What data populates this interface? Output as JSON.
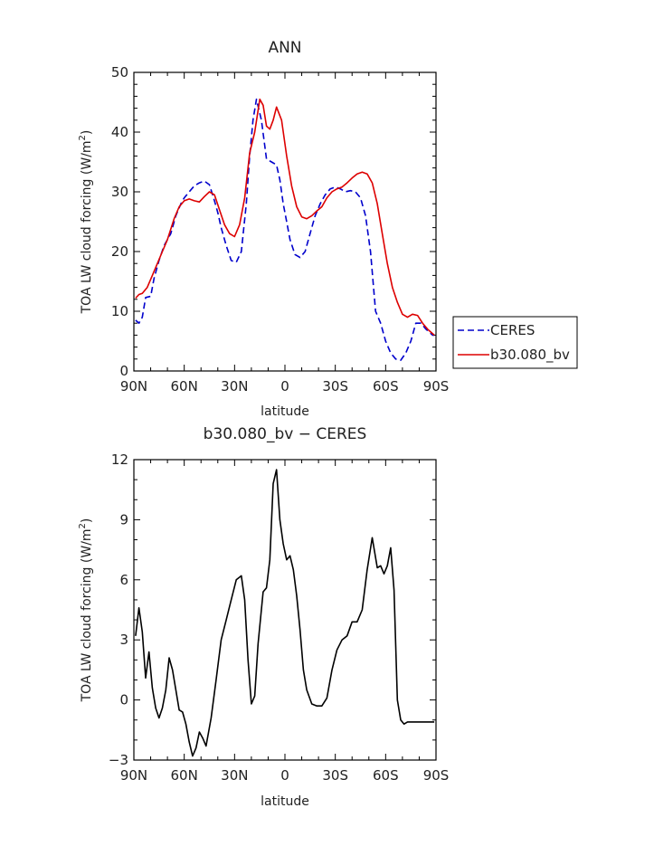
{
  "chart_data": [
    {
      "type": "line",
      "title": "ANN",
      "xlabel": "latitude",
      "ylabel": "TOA LW cloud forcing (W/m",
      "ylabel_sup": "2",
      "ylabel_close": ")",
      "xlim": [
        90,
        -90
      ],
      "ylim": [
        0,
        50
      ],
      "x_ticks": [
        {
          "value": 90,
          "label": "90N"
        },
        {
          "value": 60,
          "label": "60N"
        },
        {
          "value": 30,
          "label": "30N"
        },
        {
          "value": 0,
          "label": "0"
        },
        {
          "value": -30,
          "label": "30S"
        },
        {
          "value": -60,
          "label": "60S"
        },
        {
          "value": -90,
          "label": "90S"
        }
      ],
      "y_ticks": [
        {
          "value": 0,
          "label": "0"
        },
        {
          "value": 10,
          "label": "10"
        },
        {
          "value": 20,
          "label": "20"
        },
        {
          "value": 30,
          "label": "30"
        },
        {
          "value": 40,
          "label": "40"
        },
        {
          "value": 50,
          "label": "50"
        }
      ],
      "legend": "outside-right",
      "series": [
        {
          "name": "CERES",
          "color": "#0000cc",
          "dash": "dashed",
          "x": [
            89,
            87,
            85,
            83,
            80,
            78,
            75,
            72,
            68,
            65,
            62,
            60,
            57,
            54,
            51,
            48,
            45,
            42,
            40,
            38,
            35,
            32,
            29,
            26,
            23,
            21,
            19,
            17,
            14,
            11,
            8,
            5,
            3,
            1,
            -1,
            -3,
            -6,
            -9,
            -12,
            -15,
            -18,
            -21,
            -24,
            -27,
            -30,
            -33,
            -36,
            -39,
            -42,
            -45,
            -48,
            -51,
            -54,
            -57,
            -60,
            -63,
            -66,
            -69,
            -72,
            -75,
            -78,
            -81,
            -84,
            -86,
            -88,
            -89
          ],
          "y": [
            8.5,
            8.0,
            9.0,
            12.3,
            12.5,
            15.5,
            18.5,
            21.0,
            23.0,
            26.0,
            28.0,
            29.0,
            30.0,
            31.0,
            31.5,
            31.8,
            31.2,
            28.5,
            26.5,
            24.0,
            21.0,
            18.5,
            18.2,
            20.0,
            28.0,
            36.0,
            42.0,
            45.5,
            42.0,
            35.5,
            35.0,
            34.5,
            32.0,
            28.0,
            25.0,
            22.0,
            19.5,
            19.0,
            20.0,
            23.0,
            26.0,
            28.0,
            29.5,
            30.5,
            30.8,
            30.5,
            30.0,
            30.2,
            30.0,
            29.0,
            26.0,
            20.0,
            10.0,
            8.0,
            5.0,
            3.0,
            2.0,
            1.8,
            3.0,
            5.0,
            8.0,
            8.0,
            7.0,
            6.5,
            6.0,
            6.0
          ]
        },
        {
          "name": "b30.080_bv",
          "color": "#dd0000",
          "dash": "solid",
          "x": [
            89,
            87,
            85,
            82,
            79,
            76,
            73,
            70,
            66,
            63,
            60,
            57,
            54,
            51,
            48,
            45,
            42,
            39,
            36,
            33,
            30,
            27,
            24,
            21,
            18,
            15,
            13,
            11,
            9,
            7,
            5,
            2,
            -1,
            -4,
            -7,
            -10,
            -13,
            -16,
            -19,
            -22,
            -25,
            -28,
            -31,
            -34,
            -37,
            -40,
            -43,
            -46,
            -49,
            -52,
            -55,
            -58,
            -61,
            -64,
            -67,
            -70,
            -73,
            -76,
            -79,
            -82,
            -85,
            -87,
            -89
          ],
          "y": [
            12.2,
            12.8,
            13.0,
            14.0,
            16.0,
            18.0,
            20.0,
            22.0,
            25.5,
            27.5,
            28.5,
            28.8,
            28.5,
            28.3,
            29.2,
            30.0,
            29.5,
            27.0,
            24.5,
            23.0,
            22.5,
            24.5,
            29.0,
            36.5,
            40.0,
            45.5,
            44.5,
            41.0,
            40.5,
            42.0,
            44.2,
            42.0,
            36.0,
            31.0,
            27.5,
            25.8,
            25.5,
            26.0,
            26.8,
            27.5,
            29.0,
            30.0,
            30.5,
            30.8,
            31.5,
            32.3,
            33.0,
            33.3,
            33.0,
            31.5,
            28.0,
            23.0,
            18.0,
            14.0,
            11.5,
            9.5,
            9.0,
            9.5,
            9.3,
            8.0,
            7.0,
            6.5,
            6.0
          ]
        }
      ]
    },
    {
      "type": "line",
      "title": "b30.080_bv − CERES",
      "xlabel": "latitude",
      "ylabel": "TOA LW cloud forcing (W/m",
      "ylabel_sup": "2",
      "ylabel_close": ")",
      "xlim": [
        90,
        -90
      ],
      "ylim": [
        -3,
        12
      ],
      "x_ticks": [
        {
          "value": 90,
          "label": "90N"
        },
        {
          "value": 60,
          "label": "60N"
        },
        {
          "value": 30,
          "label": "30N"
        },
        {
          "value": 0,
          "label": "0"
        },
        {
          "value": -30,
          "label": "30S"
        },
        {
          "value": -60,
          "label": "60S"
        },
        {
          "value": -90,
          "label": "90S"
        }
      ],
      "y_ticks": [
        {
          "value": -3,
          "label": "−3"
        },
        {
          "value": 0,
          "label": "0"
        },
        {
          "value": 3,
          "label": "3"
        },
        {
          "value": 6,
          "label": "6"
        },
        {
          "value": 9,
          "label": "9"
        },
        {
          "value": 12,
          "label": "12"
        }
      ],
      "series": [
        {
          "color": "#000000",
          "x": [
            89,
            87,
            85,
            83,
            81,
            79,
            77,
            75,
            73,
            71,
            69,
            67,
            65,
            63,
            61,
            59,
            57,
            55,
            53,
            51,
            49,
            47,
            44,
            41,
            38,
            35,
            32,
            29,
            26,
            24,
            22,
            20,
            18,
            16,
            13,
            11,
            9,
            7,
            5,
            3,
            1,
            -1,
            -3,
            -5,
            -7,
            -9,
            -11,
            -13,
            -16,
            -19,
            -22,
            -25,
            -28,
            -31,
            -34,
            -37,
            -40,
            -43,
            -46,
            -49,
            -52,
            -55,
            -57,
            -59,
            -61,
            -63,
            -65,
            -67,
            -69,
            -71,
            -73,
            -75,
            -77,
            -79,
            -81,
            -83,
            -85,
            -87,
            -89
          ],
          "y": [
            3.2,
            4.6,
            3.4,
            1.1,
            2.4,
            0.6,
            -0.4,
            -0.9,
            -0.4,
            0.5,
            2.1,
            1.5,
            0.5,
            -0.5,
            -0.6,
            -1.2,
            -2.1,
            -2.8,
            -2.4,
            -1.6,
            -1.9,
            -2.3,
            -0.9,
            1.0,
            3.0,
            4.0,
            5.0,
            6.0,
            6.2,
            5.0,
            2.0,
            -0.2,
            0.2,
            2.8,
            5.4,
            5.6,
            7.0,
            10.8,
            11.5,
            9.0,
            7.8,
            7.0,
            7.2,
            6.5,
            5.2,
            3.5,
            1.5,
            0.5,
            -0.2,
            -0.3,
            -0.3,
            0.1,
            1.5,
            2.5,
            3.0,
            3.2,
            3.9,
            3.9,
            4.5,
            6.5,
            8.1,
            6.6,
            6.7,
            6.3,
            6.7,
            7.6,
            5.5,
            0.0,
            -1.0,
            -1.2,
            -1.1,
            -1.1,
            -1.1,
            -1.1,
            -1.1,
            -1.1,
            -1.1,
            -1.1,
            -1.1
          ]
        }
      ]
    }
  ]
}
